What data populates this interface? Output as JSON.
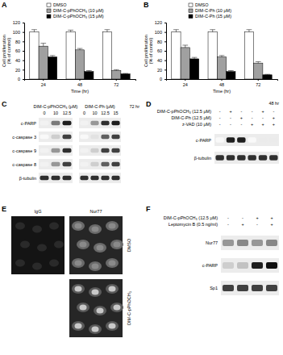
{
  "chart_data": [
    {
      "type": "bar",
      "panel_label": "A",
      "categories": [
        "24",
        "48",
        "72"
      ],
      "x_label": "Time (hr)",
      "y_label": [
        "Cell proliferation",
        "(% of control)"
      ],
      "ylim": [
        0,
        120
      ],
      "yticks": [
        0,
        20,
        40,
        60,
        80,
        100,
        120
      ],
      "legend": "top",
      "series": [
        {
          "name": "DMSO",
          "color": "#ffffff",
          "values": [
            100,
            100,
            100
          ],
          "errors": [
            5,
            4,
            5
          ]
        },
        {
          "name": "DIM-C-pPhOCH₃ (10 μM)",
          "color": "#a0a0a0",
          "values": [
            70,
            62,
            18
          ],
          "errors": [
            6,
            3,
            2
          ]
        },
        {
          "name": "DIM-C-pPhOCH₃ (15 μM)",
          "color": "#000000",
          "values": [
            47,
            16,
            11
          ],
          "errors": [
            3,
            2,
            1
          ]
        }
      ]
    },
    {
      "type": "bar",
      "panel_label": "B",
      "categories": [
        "24",
        "48",
        "72"
      ],
      "x_label": "Time (hr)",
      "y_label": [
        "Cell proliferation",
        "(% of control)"
      ],
      "ylim": [
        0,
        120
      ],
      "yticks": [
        0,
        20,
        40,
        60,
        80,
        100,
        120
      ],
      "legend": "top",
      "series": [
        {
          "name": "DMSO",
          "color": "#ffffff",
          "values": [
            100,
            100,
            100
          ],
          "errors": [
            5,
            5,
            5
          ]
        },
        {
          "name": "DIM-C-Ph (10 μM)",
          "color": "#a0a0a0",
          "values": [
            67,
            47,
            34
          ],
          "errors": [
            5,
            3,
            3
          ]
        },
        {
          "name": "DIM-C-Ph (15 μM)",
          "color": "#000000",
          "values": [
            43,
            16,
            9
          ],
          "errors": [
            3,
            2,
            1
          ]
        }
      ]
    }
  ],
  "panels": [
    {
      "label": "C",
      "time": "72 hr",
      "rows": [
        "c-PARP",
        "c-caspase 3",
        "c-caspase 9",
        "c-caspase 8",
        "β-tubulin"
      ],
      "groups": [
        {
          "header": "DIM-C-pPhOCH₃ (μM)",
          "lanes": [
            "0",
            "10",
            "12.5"
          ],
          "intensity": [
            [
              0.1,
              0.6,
              0.9
            ],
            [
              0.05,
              0.3,
              0.8
            ],
            [
              0.1,
              0.5,
              0.85
            ],
            [
              0.1,
              0.5,
              0.8
            ],
            [
              0.85,
              0.85,
              0.85
            ]
          ]
        },
        {
          "header": "DIM-C-Ph (μM)",
          "lanes": [
            "0",
            "10",
            "12.5",
            "15"
          ],
          "intensity": [
            [
              0.1,
              0.5,
              0.85,
              0.9
            ],
            [
              0.05,
              0.2,
              0.7,
              0.8
            ],
            [
              0.1,
              0.3,
              0.8,
              0.8
            ],
            [
              0.1,
              0.3,
              0.7,
              0.8
            ],
            [
              0.85,
              0.85,
              0.85,
              0.85
            ]
          ]
        }
      ]
    },
    {
      "label": "D",
      "time": "48 hr",
      "treatments": [
        {
          "label": "DIM-C-pPhOCH₃ (12.5 μM)",
          "signs": [
            "-",
            "+",
            "-",
            "-",
            "+",
            "-"
          ]
        },
        {
          "label": "DIM-C-Ph (12.5 μM)",
          "signs": [
            "-",
            "-",
            "+",
            "-",
            "-",
            "+"
          ]
        },
        {
          "label": "z-VAD (10 μM)",
          "signs": [
            "-",
            "-",
            "-",
            "+",
            "+",
            "+"
          ]
        }
      ],
      "rows": [
        "c-PARP",
        "β-tubulin"
      ],
      "intensity": [
        [
          0.05,
          0.9,
          0.9,
          0.05,
          0.15,
          0.15
        ],
        [
          0.85,
          0.85,
          0.85,
          0.85,
          0.85,
          0.85
        ]
      ]
    },
    {
      "label": "E",
      "columns": [
        "IgG",
        "Nur77"
      ],
      "rows": [
        "DMSO",
        "DIM-C-pPhOCH₃"
      ]
    },
    {
      "label": "F",
      "treatments": [
        {
          "label": "DIM-C-pPhOCH₃ (12.5 μM)",
          "signs": [
            "-",
            "-",
            "+",
            "+"
          ]
        },
        {
          "label": "Leptomycin B (0.5 ng/ml)",
          "signs": [
            "-",
            "+",
            "-",
            "+"
          ]
        }
      ],
      "rows": [
        "Nur77",
        "c-PARP",
        "Sp1"
      ],
      "intensity": [
        [
          0.5,
          0.55,
          0.5,
          0.55
        ],
        [
          0.3,
          0.35,
          0.9,
          0.95
        ],
        [
          0.8,
          0.8,
          0.8,
          0.8
        ]
      ]
    }
  ]
}
